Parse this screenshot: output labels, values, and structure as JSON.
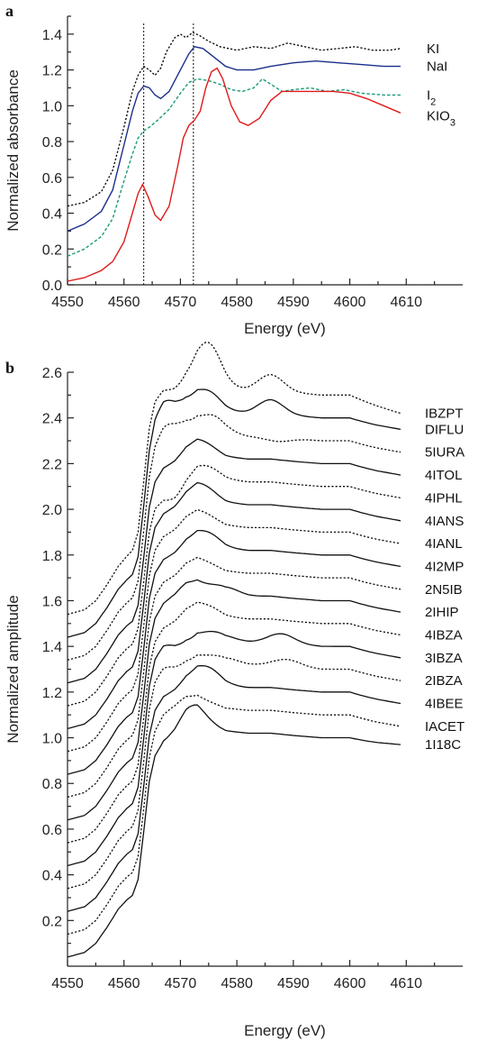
{
  "chart_data": [
    {
      "panel": "a",
      "type": "line",
      "xlabel": "Energy (eV)",
      "ylabel": "Normalized absorbance",
      "xlim": [
        4550,
        4620
      ],
      "ylim": [
        0.0,
        1.5
      ],
      "xticks": [
        4550,
        4560,
        4570,
        4580,
        4590,
        4600,
        4610
      ],
      "yticks": [
        0.0,
        0.2,
        0.4,
        0.6,
        0.8,
        1.0,
        1.2,
        1.4
      ],
      "vlines": [
        4563.5,
        4572.3
      ],
      "series": [
        {
          "name": "KI",
          "label_main": "KI",
          "label_sub": "",
          "color": "#111111",
          "dash": "dotted",
          "points": [
            [
              4550,
              0.44
            ],
            [
              4553,
              0.46
            ],
            [
              4556,
              0.52
            ],
            [
              4558,
              0.64
            ],
            [
              4560,
              0.88
            ],
            [
              4561.5,
              1.08
            ],
            [
              4562.5,
              1.17
            ],
            [
              4563.5,
              1.22
            ],
            [
              4564.5,
              1.2
            ],
            [
              4565.5,
              1.17
            ],
            [
              4566.5,
              1.21
            ],
            [
              4567.5,
              1.3
            ],
            [
              4569,
              1.38
            ],
            [
              4570,
              1.4
            ],
            [
              4571,
              1.38
            ],
            [
              4572.2,
              1.41
            ],
            [
              4573.5,
              1.39
            ],
            [
              4575,
              1.36
            ],
            [
              4577,
              1.33
            ],
            [
              4580,
              1.31
            ],
            [
              4583,
              1.33
            ],
            [
              4586,
              1.32
            ],
            [
              4589,
              1.35
            ],
            [
              4592,
              1.33
            ],
            [
              4595,
              1.31
            ],
            [
              4598,
              1.32
            ],
            [
              4601,
              1.33
            ],
            [
              4604,
              1.31
            ],
            [
              4607,
              1.31
            ],
            [
              4609,
              1.32
            ]
          ]
        },
        {
          "name": "NaI",
          "label_main": "NaI",
          "label_sub": "",
          "color": "#1c2f8a",
          "dash": "solid",
          "points": [
            [
              4550,
              0.3
            ],
            [
              4553,
              0.34
            ],
            [
              4556,
              0.41
            ],
            [
              4558,
              0.53
            ],
            [
              4560,
              0.78
            ],
            [
              4561.5,
              0.97
            ],
            [
              4562.5,
              1.07
            ],
            [
              4563.5,
              1.11
            ],
            [
              4564.5,
              1.1
            ],
            [
              4565.5,
              1.06
            ],
            [
              4566.5,
              1.04
            ],
            [
              4568,
              1.08
            ],
            [
              4570,
              1.2
            ],
            [
              4571.5,
              1.29
            ],
            [
              4572.5,
              1.33
            ],
            [
              4574,
              1.32
            ],
            [
              4576,
              1.27
            ],
            [
              4578,
              1.22
            ],
            [
              4580,
              1.2
            ],
            [
              4583,
              1.2
            ],
            [
              4586,
              1.22
            ],
            [
              4590,
              1.24
            ],
            [
              4594,
              1.25
            ],
            [
              4598,
              1.24
            ],
            [
              4602,
              1.23
            ],
            [
              4606,
              1.22
            ],
            [
              4609,
              1.22
            ]
          ]
        },
        {
          "name": "I2",
          "label_main": "I",
          "label_sub": "2",
          "color": "#1a9a7a",
          "dash": "dashed",
          "points": [
            [
              4550,
              0.16
            ],
            [
              4553,
              0.2
            ],
            [
              4556,
              0.27
            ],
            [
              4558,
              0.37
            ],
            [
              4560,
              0.58
            ],
            [
              4561.5,
              0.73
            ],
            [
              4562.5,
              0.82
            ],
            [
              4563.5,
              0.86
            ],
            [
              4564.5,
              0.88
            ],
            [
              4566,
              0.92
            ],
            [
              4568,
              0.98
            ],
            [
              4570,
              1.07
            ],
            [
              4571.5,
              1.13
            ],
            [
              4573,
              1.15
            ],
            [
              4575,
              1.14
            ],
            [
              4577,
              1.12
            ],
            [
              4579,
              1.09
            ],
            [
              4581,
              1.08
            ],
            [
              4583,
              1.1
            ],
            [
              4584.5,
              1.15
            ],
            [
              4586,
              1.12
            ],
            [
              4588,
              1.08
            ],
            [
              4590,
              1.09
            ],
            [
              4593,
              1.1
            ],
            [
              4596,
              1.08
            ],
            [
              4599,
              1.09
            ],
            [
              4602,
              1.07
            ],
            [
              4606,
              1.06
            ],
            [
              4609,
              1.06
            ]
          ]
        },
        {
          "name": "KIO3",
          "label_main": "KIO",
          "label_sub": "3",
          "color": "#e01a1a",
          "dash": "solid",
          "points": [
            [
              4550,
              0.02
            ],
            [
              4553,
              0.04
            ],
            [
              4556,
              0.08
            ],
            [
              4558,
              0.13
            ],
            [
              4560,
              0.24
            ],
            [
              4561.5,
              0.4
            ],
            [
              4562.5,
              0.51
            ],
            [
              4563.3,
              0.56
            ],
            [
              4564.3,
              0.49
            ],
            [
              4565.5,
              0.39
            ],
            [
              4566.5,
              0.36
            ],
            [
              4568,
              0.44
            ],
            [
              4569.5,
              0.66
            ],
            [
              4570.5,
              0.82
            ],
            [
              4571.5,
              0.89
            ],
            [
              4572.5,
              0.92
            ],
            [
              4573.5,
              0.97
            ],
            [
              4574.5,
              1.1
            ],
            [
              4575.5,
              1.19
            ],
            [
              4576.5,
              1.21
            ],
            [
              4577.5,
              1.15
            ],
            [
              4579,
              1.0
            ],
            [
              4580.5,
              0.91
            ],
            [
              4582,
              0.89
            ],
            [
              4584,
              0.93
            ],
            [
              4586,
              1.03
            ],
            [
              4588,
              1.08
            ],
            [
              4591,
              1.08
            ],
            [
              4594,
              1.08
            ],
            [
              4597,
              1.08
            ],
            [
              4600,
              1.07
            ],
            [
              4603,
              1.04
            ],
            [
              4606,
              1.0
            ],
            [
              4609,
              0.96
            ]
          ]
        }
      ]
    },
    {
      "panel": "b",
      "type": "line",
      "xlabel": "Energy (eV)",
      "ylabel": "Normalized amplitude",
      "xlim": [
        4550,
        4620
      ],
      "ylim": [
        0.0,
        2.6
      ],
      "xticks": [
        4550,
        4560,
        4570,
        4580,
        4590,
        4600,
        4610
      ],
      "yticks": [
        0.2,
        0.4,
        0.6,
        0.8,
        1.0,
        1.2,
        1.4,
        1.6,
        1.8,
        2.0,
        2.2,
        2.4,
        2.6
      ],
      "template": [
        [
          4550,
          0.0
        ],
        [
          4553,
          0.02
        ],
        [
          4555,
          0.06
        ],
        [
          4557,
          0.13
        ],
        [
          4559,
          0.21
        ],
        [
          4560.5,
          0.25
        ],
        [
          4561.5,
          0.27
        ],
        [
          4562.5,
          0.34
        ],
        [
          4563.5,
          0.55
        ],
        [
          4564.5,
          0.77
        ],
        [
          4565.5,
          0.88
        ],
        [
          4567,
          0.94
        ],
        [
          4569,
          0.97
        ],
        [
          4571,
          1.02
        ],
        [
          4573,
          1.04
        ],
        [
          4575,
          1.02
        ],
        [
          4578,
          0.99
        ],
        [
          4582,
          0.98
        ],
        [
          4586,
          0.98
        ],
        [
          4590,
          0.97
        ],
        [
          4595,
          0.96
        ],
        [
          4600,
          0.96
        ],
        [
          4605,
          0.95
        ],
        [
          4609,
          0.95
        ]
      ],
      "series": [
        {
          "name": "IBZPT",
          "dash": "dotted",
          "offset": 1.54,
          "tail": 2.42,
          "bumps": [
            [
              4565.5,
              0.05
            ],
            [
              4575,
              0.17
            ],
            [
              4586,
              0.07
            ]
          ]
        },
        {
          "name": "DIFLU",
          "dash": "solid",
          "offset": 1.44,
          "tail": 2.35,
          "bumps": [
            [
              4567,
              0.09
            ],
            [
              4575,
              0.06
            ],
            [
              4586,
              0.06
            ]
          ]
        },
        {
          "name": "5IURA",
          "dash": "dotted",
          "offset": 1.34,
          "tail": 2.25,
          "bumps": [
            [
              4567.5,
              0.08
            ],
            [
              4576,
              0.06
            ],
            [
              4587,
              -0.02
            ]
          ]
        },
        {
          "name": "4ITOL",
          "dash": "solid",
          "offset": 1.24,
          "tail": 2.15,
          "bumps": [
            [
              4574,
              0.03
            ]
          ]
        },
        {
          "name": "4IPHL",
          "dash": "dotted",
          "offset": 1.14,
          "tail": 2.05,
          "bumps": [
            [
              4569,
              -0.06
            ],
            [
              4575,
              0.03
            ]
          ]
        },
        {
          "name": "4IANS",
          "dash": "solid",
          "offset": 1.04,
          "tail": 1.95,
          "bumps": [
            [
              4574,
              0.04
            ]
          ]
        },
        {
          "name": "4IANL",
          "dash": "dotted",
          "offset": 0.94,
          "tail": 1.85,
          "bumps": [
            [
              4574,
              0.02
            ]
          ]
        },
        {
          "name": "4I2MP",
          "dash": "solid",
          "offset": 0.84,
          "tail": 1.75,
          "bumps": [
            [
              4575,
              0.04
            ]
          ]
        },
        {
          "name": "2N5IB",
          "dash": "dotted",
          "offset": 0.74,
          "tail": 1.65,
          "bumps": [
            [
              4574,
              0.01
            ]
          ]
        },
        {
          "name": "2IHIP",
          "dash": "solid",
          "offset": 0.64,
          "tail": 1.55,
          "bumps": [
            [
              4570,
              0.02
            ],
            [
              4578,
              0.03
            ]
          ]
        },
        {
          "name": "4IBZA",
          "dash": "dotted",
          "offset": 0.54,
          "tail": 1.45,
          "bumps": [
            [
              4575,
              0.02
            ]
          ]
        },
        {
          "name": "3IBZA",
          "dash": "solid",
          "offset": 0.44,
          "tail": 1.35,
          "bumps": [
            [
              4567,
              0.03
            ],
            [
              4571,
              -0.04
            ],
            [
              4577,
              0.02
            ],
            [
              4588,
              0.04
            ]
          ]
        },
        {
          "name": "2IBZA",
          "dash": "dotted",
          "offset": 0.34,
          "tail": 1.25,
          "bumps": [
            [
              4567,
              0.03
            ],
            [
              4571,
              -0.03
            ],
            [
              4578,
              0.02
            ],
            [
              4589,
              0.03
            ]
          ]
        },
        {
          "name": "4IBEE",
          "dash": "solid",
          "offset": 0.24,
          "tail": 1.15,
          "bumps": [
            [
              4575,
              0.05
            ]
          ]
        },
        {
          "name": "IACET",
          "dash": "dotted",
          "offset": 0.14,
          "tail": 1.05,
          "bumps": [
            [
              4569,
              0.03
            ]
          ]
        },
        {
          "name": "1I18C",
          "dash": "solid",
          "offset": 0.04,
          "tail": 0.97,
          "bumps": [
            [
              4572,
              0.07
            ]
          ]
        }
      ]
    }
  ]
}
